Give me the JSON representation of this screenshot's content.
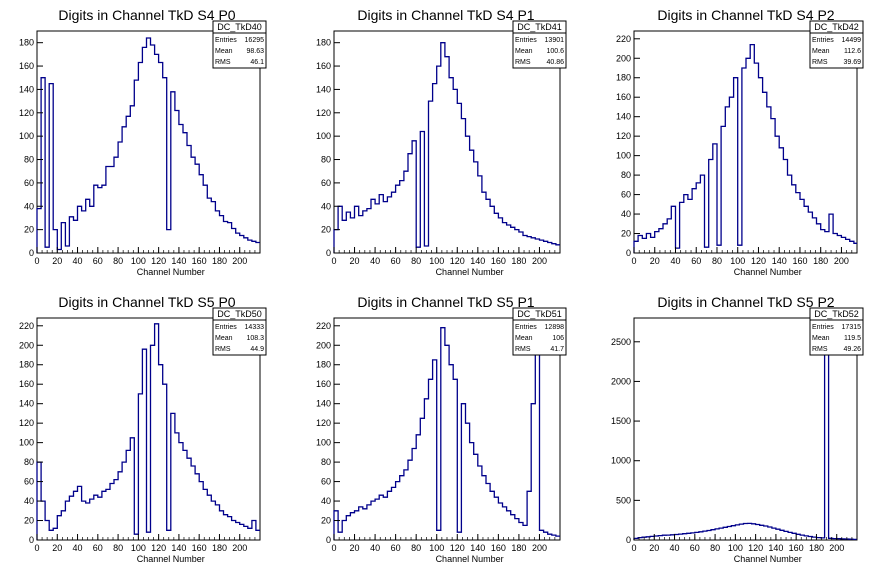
{
  "chart_data": [
    {
      "type": "histogram",
      "title": "Digits in Channel TkD S4 P0",
      "xlabel": "Channel Number",
      "ylabel": "",
      "xlim": [
        0,
        220
      ],
      "ylim": [
        0,
        190
      ],
      "xticks": [
        0,
        20,
        40,
        60,
        80,
        100,
        120,
        140,
        160,
        180,
        200
      ],
      "yticks": [
        0,
        20,
        40,
        60,
        80,
        100,
        120,
        140,
        160,
        180
      ],
      "stats": {
        "name": "DC_TkD40",
        "entries": "16295",
        "mean": "98.63",
        "rms": "46.1"
      },
      "series": [
        {
          "x": [
            0,
            4,
            8,
            12,
            16,
            20,
            24,
            28,
            32,
            36,
            40,
            44,
            48,
            52,
            56,
            60,
            64,
            68,
            72,
            76,
            80,
            84,
            88,
            92,
            96,
            100,
            104,
            108,
            112,
            116,
            120,
            124,
            128,
            132,
            136,
            140,
            144,
            148,
            152,
            156,
            160,
            164,
            168,
            172,
            176,
            180,
            184,
            188,
            192,
            196,
            200,
            204,
            208,
            212,
            216
          ],
          "y": [
            38,
            150,
            5,
            145,
            20,
            3,
            26,
            6,
            31,
            28,
            40,
            36,
            46,
            40,
            58,
            56,
            58,
            74,
            74,
            82,
            95,
            108,
            117,
            126,
            148,
            163,
            176,
            184,
            178,
            170,
            163,
            150,
            20,
            138,
            122,
            110,
            103,
            92,
            82,
            76,
            67,
            58,
            47,
            44,
            36,
            32,
            27,
            26,
            21,
            17,
            15,
            13,
            11,
            10,
            9
          ]
        }
      ]
    },
    {
      "type": "histogram",
      "title": "Digits in Channel TkD S4 P1",
      "xlabel": "Channel Number",
      "ylabel": "",
      "xlim": [
        0,
        220
      ],
      "ylim": [
        0,
        190
      ],
      "xticks": [
        0,
        20,
        40,
        60,
        80,
        100,
        120,
        140,
        160,
        180,
        200
      ],
      "yticks": [
        0,
        20,
        40,
        60,
        80,
        100,
        120,
        140,
        160,
        180
      ],
      "stats": {
        "name": "DC_TkD41",
        "entries": "13901",
        "mean": "100.6",
        "rms": "40.86"
      },
      "series": [
        {
          "x": [
            0,
            4,
            8,
            12,
            16,
            20,
            24,
            28,
            32,
            36,
            40,
            44,
            48,
            52,
            56,
            60,
            64,
            68,
            72,
            76,
            80,
            84,
            88,
            92,
            96,
            100,
            104,
            108,
            112,
            116,
            120,
            124,
            128,
            132,
            136,
            140,
            144,
            148,
            152,
            156,
            160,
            164,
            168,
            172,
            176,
            180,
            184,
            188,
            192,
            196,
            200,
            204,
            208,
            212,
            216
          ],
          "y": [
            20,
            40,
            28,
            35,
            30,
            40,
            32,
            36,
            38,
            46,
            42,
            50,
            44,
            48,
            52,
            58,
            62,
            70,
            85,
            96,
            5,
            104,
            6,
            130,
            145,
            160,
            180,
            168,
            150,
            140,
            128,
            115,
            100,
            88,
            78,
            66,
            52,
            46,
            40,
            34,
            30,
            26,
            24,
            22,
            20,
            18,
            15,
            14,
            13,
            12,
            11,
            10,
            9,
            8,
            7
          ]
        }
      ]
    },
    {
      "type": "histogram",
      "title": "Digits in Channel TkD S4 P2",
      "xlabel": "Channel Number",
      "ylabel": "",
      "xlim": [
        0,
        215
      ],
      "ylim": [
        0,
        228
      ],
      "xticks": [
        0,
        20,
        40,
        60,
        80,
        100,
        120,
        140,
        160,
        180,
        200
      ],
      "yticks": [
        0,
        20,
        40,
        60,
        80,
        100,
        120,
        140,
        160,
        180,
        200,
        220
      ],
      "stats": {
        "name": "DC_TkD42",
        "entries": "14499",
        "mean": "112.6",
        "rms": "39.69"
      },
      "series": [
        {
          "x": [
            0,
            4,
            8,
            12,
            16,
            20,
            24,
            28,
            32,
            36,
            40,
            44,
            48,
            52,
            56,
            60,
            64,
            68,
            72,
            76,
            80,
            84,
            88,
            92,
            96,
            100,
            104,
            108,
            112,
            116,
            120,
            124,
            128,
            132,
            136,
            140,
            144,
            148,
            152,
            156,
            160,
            164,
            168,
            172,
            176,
            180,
            184,
            188,
            192,
            196,
            200,
            204,
            208,
            212
          ],
          "y": [
            12,
            18,
            15,
            20,
            16,
            22,
            25,
            30,
            35,
            48,
            5,
            52,
            60,
            55,
            66,
            72,
            80,
            6,
            96,
            112,
            8,
            130,
            150,
            160,
            180,
            8,
            190,
            200,
            214,
            195,
            180,
            165,
            150,
            138,
            120,
            108,
            96,
            80,
            70,
            62,
            55,
            48,
            42,
            36,
            30,
            24,
            22,
            40,
            20,
            18,
            16,
            14,
            12,
            10
          ]
        }
      ]
    },
    {
      "type": "histogram",
      "title": "Digits in Channel TkD S5 P0",
      "xlabel": "Channel Number",
      "ylabel": "",
      "xlim": [
        0,
        220
      ],
      "ylim": [
        0,
        228
      ],
      "xticks": [
        0,
        20,
        40,
        60,
        80,
        100,
        120,
        140,
        160,
        180,
        200
      ],
      "yticks": [
        0,
        20,
        40,
        60,
        80,
        100,
        120,
        140,
        160,
        180,
        200,
        220
      ],
      "stats": {
        "name": "DC_TkD50",
        "entries": "14333",
        "mean": "108.3",
        "rms": "44.9"
      },
      "series": [
        {
          "x": [
            0,
            4,
            8,
            12,
            16,
            20,
            24,
            28,
            32,
            36,
            40,
            44,
            48,
            52,
            56,
            60,
            64,
            68,
            72,
            76,
            80,
            84,
            88,
            92,
            96,
            100,
            104,
            108,
            112,
            116,
            120,
            124,
            128,
            132,
            136,
            140,
            144,
            148,
            152,
            156,
            160,
            164,
            168,
            172,
            176,
            180,
            184,
            188,
            192,
            196,
            200,
            204,
            208,
            212,
            216
          ],
          "y": [
            80,
            40,
            20,
            10,
            12,
            25,
            30,
            40,
            45,
            50,
            55,
            40,
            38,
            42,
            46,
            44,
            50,
            52,
            58,
            62,
            70,
            80,
            92,
            105,
            6,
            150,
            196,
            8,
            200,
            222,
            180,
            160,
            10,
            130,
            110,
            100,
            92,
            84,
            76,
            68,
            60,
            52,
            46,
            40,
            36,
            30,
            26,
            24,
            20,
            18,
            16,
            14,
            12,
            20,
            10
          ]
        }
      ]
    },
    {
      "type": "histogram",
      "title": "Digits in Channel TkD S5 P1",
      "xlabel": "Channel Number",
      "ylabel": "",
      "xlim": [
        0,
        220
      ],
      "ylim": [
        0,
        228
      ],
      "xticks": [
        0,
        20,
        40,
        60,
        80,
        100,
        120,
        140,
        160,
        180,
        200
      ],
      "yticks": [
        0,
        20,
        40,
        60,
        80,
        100,
        120,
        140,
        160,
        180,
        200,
        220
      ],
      "stats": {
        "name": "DC_TkD51",
        "entries": "12898",
        "mean": "106",
        "rms": "41.7"
      },
      "series": [
        {
          "x": [
            0,
            4,
            8,
            12,
            16,
            20,
            24,
            28,
            32,
            36,
            40,
            44,
            48,
            52,
            56,
            60,
            64,
            68,
            72,
            76,
            80,
            84,
            88,
            92,
            96,
            100,
            104,
            108,
            112,
            116,
            120,
            124,
            128,
            132,
            136,
            140,
            144,
            148,
            152,
            156,
            160,
            164,
            168,
            172,
            176,
            180,
            184,
            188,
            192,
            196,
            200,
            204,
            208,
            212,
            216
          ],
          "y": [
            30,
            8,
            20,
            25,
            28,
            30,
            34,
            32,
            36,
            40,
            42,
            46,
            44,
            50,
            54,
            60,
            66,
            72,
            82,
            94,
            108,
            125,
            145,
            165,
            185,
            10,
            218,
            200,
            180,
            165,
            8,
            140,
            120,
            100,
            88,
            76,
            66,
            58,
            50,
            44,
            38,
            34,
            30,
            26,
            22,
            18,
            15,
            50,
            140,
            222,
            10,
            8,
            6,
            5,
            4
          ]
        }
      ]
    },
    {
      "type": "histogram",
      "title": "Digits in Channel TkD S5 P2",
      "xlabel": "Channel Number",
      "ylabel": "",
      "xlim": [
        0,
        220
      ],
      "ylim": [
        0,
        2800
      ],
      "xticks": [
        0,
        20,
        40,
        60,
        80,
        100,
        120,
        140,
        160,
        180,
        200
      ],
      "yticks": [
        0,
        500,
        1000,
        1500,
        2000,
        2500
      ],
      "stats": {
        "name": "DC_TkD52",
        "entries": "17315",
        "mean": "119.5",
        "rms": "49.26"
      },
      "series": [
        {
          "x": [
            0,
            4,
            8,
            12,
            16,
            20,
            24,
            28,
            32,
            36,
            40,
            44,
            48,
            52,
            56,
            60,
            64,
            68,
            72,
            76,
            80,
            84,
            88,
            92,
            96,
            100,
            104,
            108,
            112,
            116,
            120,
            124,
            128,
            132,
            136,
            140,
            144,
            148,
            152,
            156,
            160,
            164,
            168,
            172,
            176,
            180,
            184,
            188,
            192,
            196,
            200,
            204,
            208,
            212,
            216
          ],
          "y": [
            20,
            30,
            35,
            40,
            45,
            50,
            55,
            60,
            62,
            66,
            70,
            75,
            80,
            84,
            90,
            96,
            104,
            112,
            120,
            130,
            140,
            150,
            160,
            170,
            180,
            190,
            200,
            208,
            210,
            204,
            196,
            186,
            176,
            164,
            150,
            136,
            122,
            108,
            96,
            84,
            72,
            62,
            52,
            44,
            36,
            30,
            26,
            2600,
            22,
            18,
            16,
            14,
            12,
            10,
            8
          ]
        }
      ]
    }
  ]
}
